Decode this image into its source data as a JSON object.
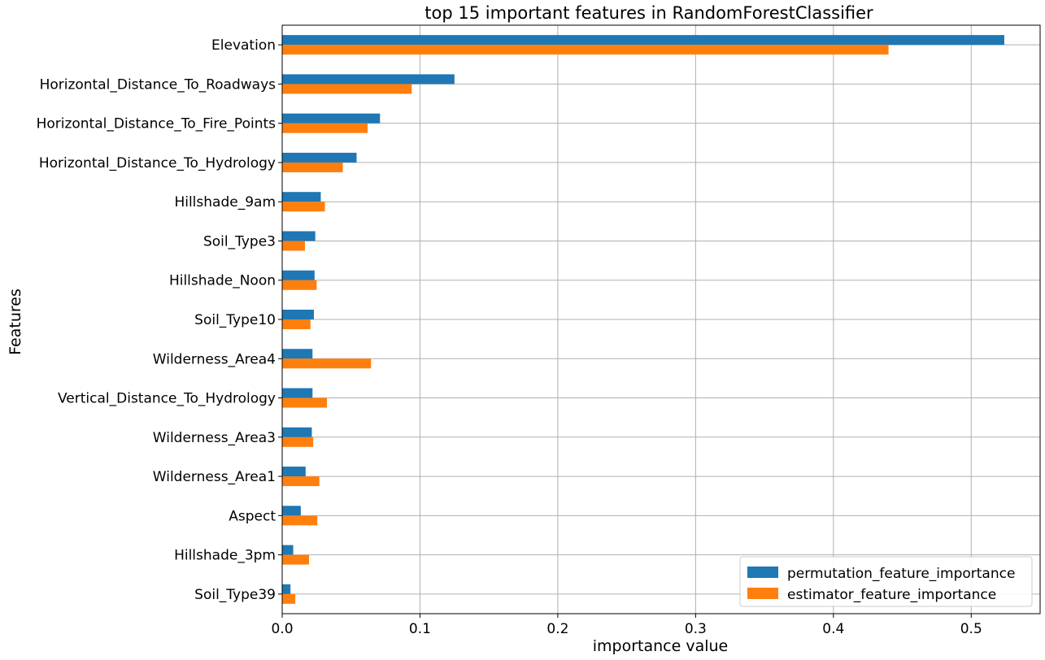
{
  "chart_data": {
    "type": "bar",
    "orientation": "horizontal",
    "title": "top 15 important features in RandomForestClassifier",
    "xlabel": "importance value",
    "ylabel": "Features",
    "xlim": [
      0,
      0.55
    ],
    "xticks": [
      0.0,
      0.1,
      0.2,
      0.3,
      0.4,
      0.5
    ],
    "grid": true,
    "legend_position": "bottom-right",
    "categories": [
      "Elevation",
      "Horizontal_Distance_To_Roadways",
      "Horizontal_Distance_To_Fire_Points",
      "Horizontal_Distance_To_Hydrology",
      "Hillshade_9am",
      "Soil_Type3",
      "Hillshade_Noon",
      "Soil_Type10",
      "Wilderness_Area4",
      "Vertical_Distance_To_Hydrology",
      "Wilderness_Area3",
      "Wilderness_Area1",
      "Aspect",
      "Hillshade_3pm",
      "Soil_Type39"
    ],
    "series": [
      {
        "name": "permutation_feature_importance",
        "color": "#1f77b4",
        "values": [
          0.524,
          0.125,
          0.071,
          0.054,
          0.028,
          0.024,
          0.0235,
          0.023,
          0.022,
          0.022,
          0.0215,
          0.017,
          0.0135,
          0.008,
          0.006
        ]
      },
      {
        "name": "estimator_feature_importance",
        "color": "#ff7f0e",
        "values": [
          0.44,
          0.094,
          0.062,
          0.044,
          0.031,
          0.0165,
          0.025,
          0.0205,
          0.0645,
          0.0325,
          0.0225,
          0.027,
          0.0255,
          0.0195,
          0.0095
        ]
      }
    ]
  }
}
